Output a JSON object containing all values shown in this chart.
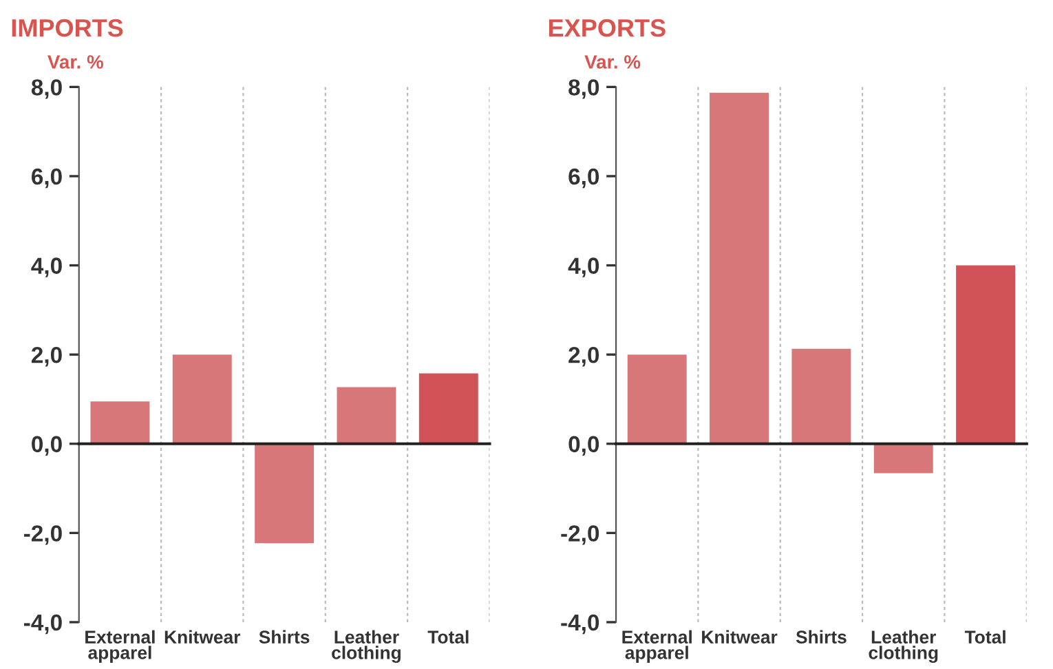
{
  "chart_data": [
    {
      "type": "bar",
      "title": "IMPORTS",
      "ylabel": "Var. %",
      "categories": [
        "External\napparel",
        "Knitwear",
        "Shirts",
        "Leather\nclothing",
        "Total"
      ],
      "values": [
        0.95,
        2.0,
        -2.23,
        1.27,
        1.58
      ],
      "colors": [
        "#d7777a",
        "#d7777a",
        "#d7777a",
        "#d7777a",
        "#d15357"
      ],
      "ylim": [
        -4,
        8
      ],
      "yticks": [
        {
          "value": -4,
          "label": "-4,0"
        },
        {
          "value": -2,
          "label": "-2,0"
        },
        {
          "value": 0,
          "label": "0,0"
        },
        {
          "value": 2,
          "label": "2,0"
        },
        {
          "value": 4,
          "label": "4,0"
        },
        {
          "value": 6,
          "label": "6,0"
        },
        {
          "value": 8,
          "label": "8,0"
        }
      ],
      "grid": "x"
    },
    {
      "type": "bar",
      "title": "EXPORTS",
      "ylabel": "Var. %",
      "categories": [
        "External\napparel",
        "Knitwear",
        "Shirts",
        "Leather\nclothing",
        "Total"
      ],
      "values": [
        2.0,
        7.87,
        2.13,
        -0.66,
        4.0
      ],
      "colors": [
        "#d7777a",
        "#d7777a",
        "#d7777a",
        "#d7777a",
        "#d15357"
      ],
      "ylim": [
        -4,
        8
      ],
      "yticks": [
        {
          "value": -4,
          "label": "-4,0"
        },
        {
          "value": -2,
          "label": "-2,0"
        },
        {
          "value": 0,
          "label": "0,0"
        },
        {
          "value": 2,
          "label": "2,0"
        },
        {
          "value": 4,
          "label": "4,0"
        },
        {
          "value": 6,
          "label": "6,0"
        },
        {
          "value": 8,
          "label": "8,0"
        }
      ],
      "grid": "x"
    }
  ]
}
